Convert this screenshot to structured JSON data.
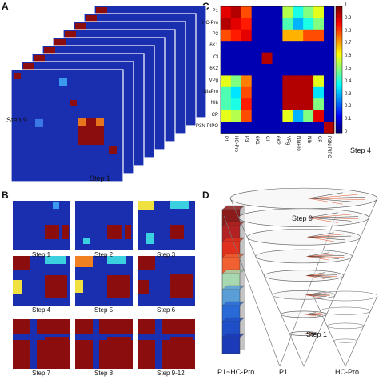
{
  "panels": {
    "a": {
      "letter": "A",
      "step_top": "Step 9",
      "step_bottom": "Step 1"
    },
    "b": {
      "letter": "B",
      "steps": [
        "Step 1",
        "Step 2",
        "Step 3",
        "Step 4",
        "Step 5",
        "Step 6",
        "Step 7",
        "Step 8",
        "Step 9-12"
      ]
    },
    "c": {
      "letter": "C",
      "row_labels": [
        "P1",
        "HC-Pro",
        "P3",
        "6K1",
        "CI",
        "6K2",
        "VPg",
        "NIaPro",
        "NIb",
        "CP",
        "P3N-PIPO"
      ],
      "col_labels": [
        "P1",
        "HC-Pro",
        "P3",
        "6K1",
        "CI",
        "6K2",
        "VPg",
        "NIaPro",
        "NIb",
        "CP",
        "P3N-PIPO"
      ],
      "colorbar_ticks": [
        "1",
        "0.9",
        "0.8",
        "0.7",
        "0.6",
        "0.5",
        "0.4",
        "0.3",
        "0.2",
        "0.1",
        "0"
      ],
      "step_label": "Step 4",
      "matrix": [
        [
          0.9,
          0.95,
          0.8,
          0.05,
          0.05,
          0.05,
          0.55,
          0.4,
          0.5,
          0.6,
          0.05
        ],
        [
          0.95,
          0.9,
          0.85,
          0.05,
          0.05,
          0.05,
          0.45,
          0.3,
          0.4,
          0.5,
          0.05
        ],
        [
          0.8,
          0.85,
          0.9,
          0.05,
          0.05,
          0.05,
          0.7,
          0.7,
          0.8,
          0.8,
          0.05
        ],
        [
          0.05,
          0.05,
          0.05,
          0.05,
          0.05,
          0.05,
          0.05,
          0.05,
          0.05,
          0.05,
          0.05
        ],
        [
          0.05,
          0.05,
          0.05,
          0.05,
          0.95,
          0.05,
          0.05,
          0.05,
          0.05,
          0.05,
          0.05
        ],
        [
          0.05,
          0.05,
          0.05,
          0.05,
          0.05,
          0.05,
          0.05,
          0.05,
          0.05,
          0.05,
          0.05
        ],
        [
          0.6,
          0.5,
          0.75,
          0.05,
          0.05,
          0.05,
          0.95,
          0.95,
          0.95,
          0.6,
          0.05
        ],
        [
          0.45,
          0.35,
          0.8,
          0.05,
          0.05,
          0.05,
          0.95,
          0.95,
          0.95,
          0.35,
          0.05
        ],
        [
          0.45,
          0.4,
          0.85,
          0.05,
          0.05,
          0.05,
          0.95,
          0.95,
          0.95,
          0.5,
          0.05
        ],
        [
          0.6,
          0.55,
          0.8,
          0.05,
          0.05,
          0.05,
          0.6,
          0.3,
          0.5,
          0.9,
          0.05
        ],
        [
          0.05,
          0.05,
          0.05,
          0.05,
          0.05,
          0.05,
          0.05,
          0.05,
          0.05,
          0.05,
          0.95
        ]
      ]
    },
    "d": {
      "letter": "D",
      "step_top": "Step 9",
      "step_bottom": "Step 1",
      "bar_label": "P1~HC-Pro",
      "cone_left": "P1",
      "cone_right": "HC-Pro",
      "bar_colors": [
        "#8b1a1a",
        "#b22222",
        "#e0301e",
        "#f06030",
        "#a8d8b0",
        "#5a9ed8",
        "#2a6ad8",
        "#1e4ec8",
        "#1a3ab8"
      ]
    }
  },
  "colors": {
    "matrix_bg": "#1a2fb0",
    "dark_red": "#8b0d0d"
  }
}
